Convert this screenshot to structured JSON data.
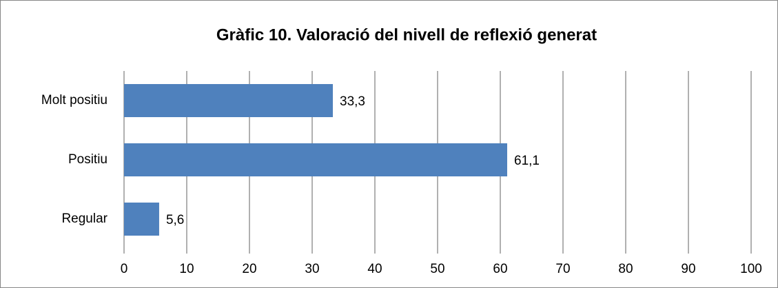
{
  "chart_data": {
    "type": "bar",
    "orientation": "horizontal",
    "title": "Gràfic 10. Valoració del nivell de reflexió generat",
    "categories": [
      "Molt positiu",
      "Positiu",
      "Regular"
    ],
    "values": [
      33.3,
      61.1,
      5.6
    ],
    "value_labels": [
      "33,3",
      "61,1",
      "5,6"
    ],
    "color": "#4f81bd",
    "xlim": [
      0,
      100
    ],
    "xticks": [
      0,
      10,
      20,
      30,
      40,
      50,
      60,
      70,
      80,
      90,
      100
    ],
    "grid": true
  }
}
